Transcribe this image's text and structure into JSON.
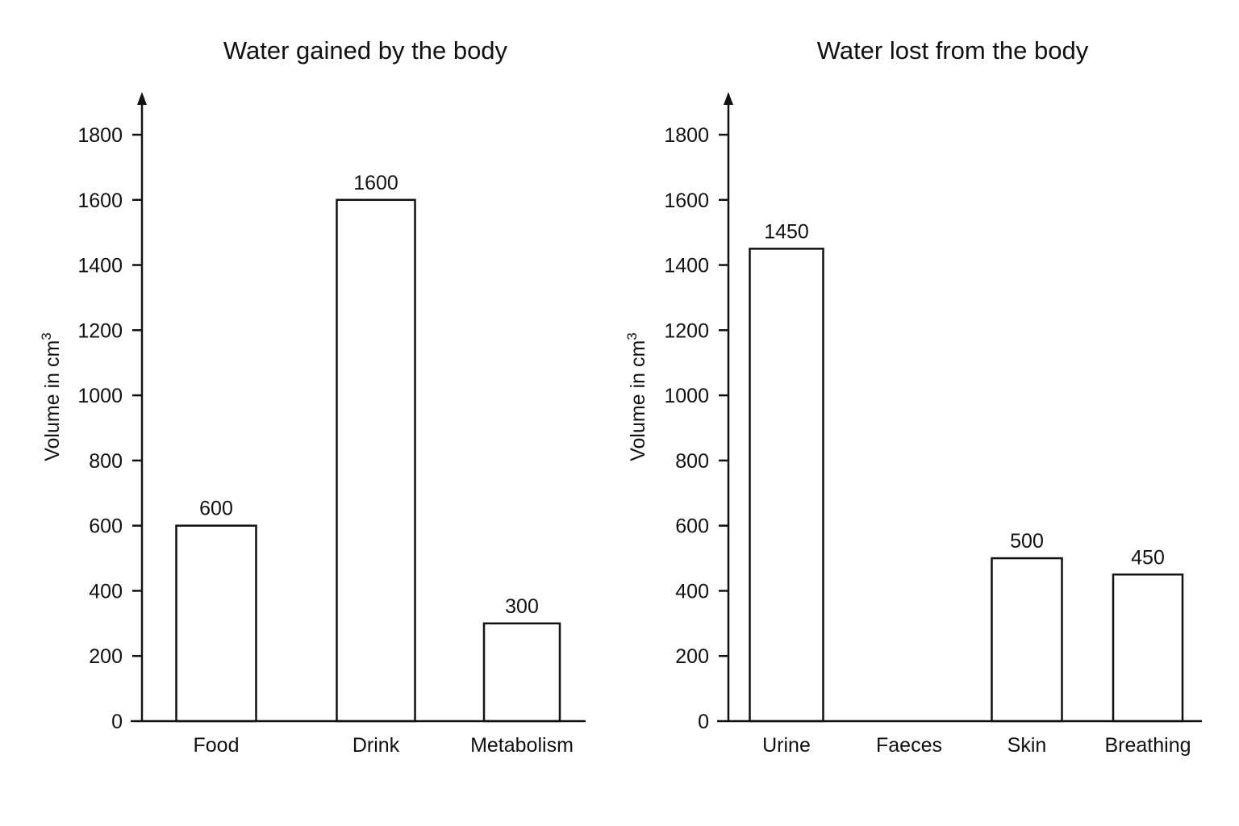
{
  "chart_data": [
    {
      "type": "bar",
      "title": "Water gained by the body",
      "ylabel": "Volume in cm",
      "ylabel_superscript": "3",
      "xlabel": "",
      "ylim": [
        0,
        1900
      ],
      "yticks": [
        0,
        200,
        400,
        600,
        800,
        1000,
        1200,
        1400,
        1600,
        1800
      ],
      "categories": [
        "Food",
        "Drink",
        "Metabolism"
      ],
      "values": [
        600,
        1600,
        300
      ],
      "data_labels": [
        "600",
        "1600",
        "300"
      ],
      "grid": false,
      "bar_fill": "#ffffff",
      "bar_stroke": "#111111"
    },
    {
      "type": "bar",
      "title": "Water lost from the body",
      "ylabel": "Volume in cm",
      "ylabel_superscript": "3",
      "xlabel": "",
      "ylim": [
        0,
        1900
      ],
      "yticks": [
        0,
        200,
        400,
        600,
        800,
        1000,
        1200,
        1400,
        1600,
        1800
      ],
      "categories": [
        "Urine",
        "Faeces",
        "Skin",
        "Breathing"
      ],
      "values": [
        1450,
        null,
        500,
        450
      ],
      "data_labels": [
        "1450",
        "",
        "500",
        "450"
      ],
      "grid": false,
      "bar_fill": "#ffffff",
      "bar_stroke": "#111111"
    }
  ]
}
